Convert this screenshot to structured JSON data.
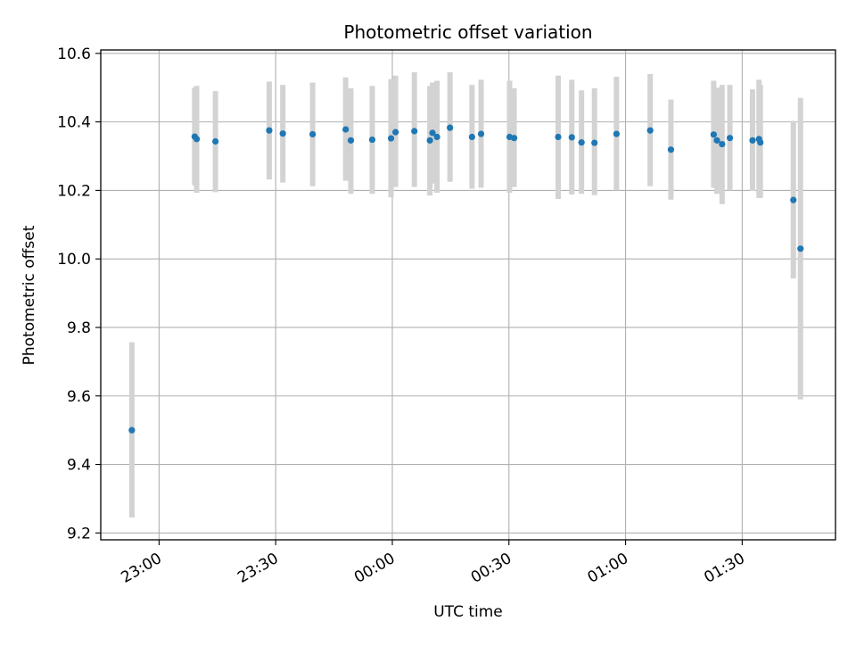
{
  "chart_data": {
    "type": "scatter",
    "title": "Photometric offset variation",
    "xlabel": "UTC time",
    "ylabel": "Photometric offset",
    "xlim": [
      "22:45",
      "01:54"
    ],
    "ylim": [
      9.18,
      10.61
    ],
    "x_ticks": [
      "23:00",
      "23:30",
      "00:00",
      "00:30",
      "01:00",
      "01:30"
    ],
    "y_ticks": [
      "9.2",
      "9.4",
      "9.6",
      "9.8",
      "10.0",
      "10.2",
      "10.4",
      "10.6"
    ],
    "grid": true,
    "marker_color": "#1f77b4",
    "errorbar_color": "#d3d3d3",
    "points": [
      {
        "t": "22:53:00",
        "y": 9.5,
        "low": 9.245,
        "high": 9.757
      },
      {
        "t": "23:09:10",
        "y": 10.357,
        "low": 10.215,
        "high": 10.5
      },
      {
        "t": "23:09:40",
        "y": 10.35,
        "low": 10.193,
        "high": 10.505
      },
      {
        "t": "23:14:30",
        "y": 10.343,
        "low": 10.195,
        "high": 10.49
      },
      {
        "t": "23:28:20",
        "y": 10.375,
        "low": 10.232,
        "high": 10.518
      },
      {
        "t": "23:31:50",
        "y": 10.366,
        "low": 10.223,
        "high": 10.508
      },
      {
        "t": "23:39:30",
        "y": 10.364,
        "low": 10.212,
        "high": 10.515
      },
      {
        "t": "23:48:00",
        "y": 10.378,
        "low": 10.228,
        "high": 10.53
      },
      {
        "t": "23:49:20",
        "y": 10.346,
        "low": 10.19,
        "high": 10.498
      },
      {
        "t": "23:54:50",
        "y": 10.348,
        "low": 10.19,
        "high": 10.505
      },
      {
        "t": "23:59:40",
        "y": 10.352,
        "low": 10.18,
        "high": 10.525
      },
      {
        "t": "00:00:50",
        "y": 10.37,
        "low": 10.21,
        "high": 10.535
      },
      {
        "t": "00:05:40",
        "y": 10.373,
        "low": 10.21,
        "high": 10.545
      },
      {
        "t": "00:09:40",
        "y": 10.346,
        "low": 10.185,
        "high": 10.505
      },
      {
        "t": "00:10:20",
        "y": 10.368,
        "low": 10.22,
        "high": 10.515
      },
      {
        "t": "00:11:30",
        "y": 10.356,
        "low": 10.193,
        "high": 10.52
      },
      {
        "t": "00:14:50",
        "y": 10.383,
        "low": 10.225,
        "high": 10.545
      },
      {
        "t": "00:20:30",
        "y": 10.356,
        "low": 10.205,
        "high": 10.508
      },
      {
        "t": "00:22:50",
        "y": 10.365,
        "low": 10.208,
        "high": 10.523
      },
      {
        "t": "00:30:10",
        "y": 10.356,
        "low": 10.193,
        "high": 10.52
      },
      {
        "t": "00:31:20",
        "y": 10.353,
        "low": 10.21,
        "high": 10.498
      },
      {
        "t": "00:42:40",
        "y": 10.356,
        "low": 10.175,
        "high": 10.535
      },
      {
        "t": "00:46:10",
        "y": 10.355,
        "low": 10.188,
        "high": 10.523
      },
      {
        "t": "00:48:40",
        "y": 10.34,
        "low": 10.19,
        "high": 10.492
      },
      {
        "t": "00:52:00",
        "y": 10.339,
        "low": 10.186,
        "high": 10.498
      },
      {
        "t": "00:57:40",
        "y": 10.365,
        "low": 10.2,
        "high": 10.532
      },
      {
        "t": "01:06:20",
        "y": 10.375,
        "low": 10.212,
        "high": 10.54
      },
      {
        "t": "01:11:40",
        "y": 10.319,
        "low": 10.173,
        "high": 10.465
      },
      {
        "t": "01:22:40",
        "y": 10.363,
        "low": 10.208,
        "high": 10.52
      },
      {
        "t": "01:23:30",
        "y": 10.346,
        "low": 10.19,
        "high": 10.5
      },
      {
        "t": "01:24:50",
        "y": 10.335,
        "low": 10.16,
        "high": 10.508
      },
      {
        "t": "01:26:50",
        "y": 10.353,
        "low": 10.2,
        "high": 10.508
      },
      {
        "t": "01:32:40",
        "y": 10.346,
        "low": 10.198,
        "high": 10.495
      },
      {
        "t": "01:34:20",
        "y": 10.35,
        "low": 10.178,
        "high": 10.523
      },
      {
        "t": "01:34:40",
        "y": 10.34,
        "low": 10.178,
        "high": 10.508
      },
      {
        "t": "01:43:10",
        "y": 10.172,
        "low": 9.943,
        "high": 10.403
      },
      {
        "t": "01:45:00",
        "y": 10.03,
        "low": 9.59,
        "high": 10.47
      }
    ]
  }
}
